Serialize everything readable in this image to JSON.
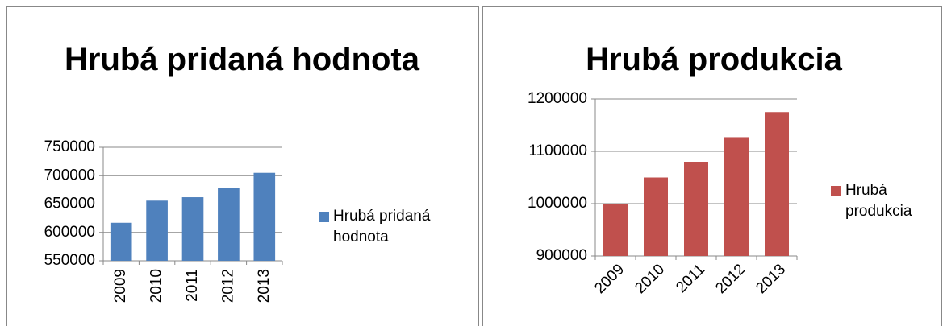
{
  "chart_data": [
    {
      "type": "bar",
      "title": "Hrubá pridaná hodnota",
      "categories": [
        "2009",
        "2010",
        "2011",
        "2012",
        "2013"
      ],
      "series": [
        {
          "name": "Hrubá pridaná hodnota",
          "color": "#4f81bd",
          "values": [
            617000,
            656000,
            662000,
            678000,
            705000
          ]
        }
      ],
      "ylim": [
        550000,
        750000
      ],
      "yticks": [
        550000,
        600000,
        650000,
        700000,
        750000
      ],
      "legend": "right"
    },
    {
      "type": "bar",
      "title": "Hrubá produkcia",
      "categories": [
        "2009",
        "2010",
        "2011",
        "2012",
        "2013"
      ],
      "series": [
        {
          "name": "Hrubá produkcia",
          "color": "#c0504d",
          "values": [
            1000000,
            1050000,
            1080000,
            1127000,
            1175000
          ]
        }
      ],
      "ylim": [
        900000,
        1200000
      ],
      "yticks": [
        900000,
        1000000,
        1100000,
        1200000
      ],
      "legend": "right"
    }
  ]
}
